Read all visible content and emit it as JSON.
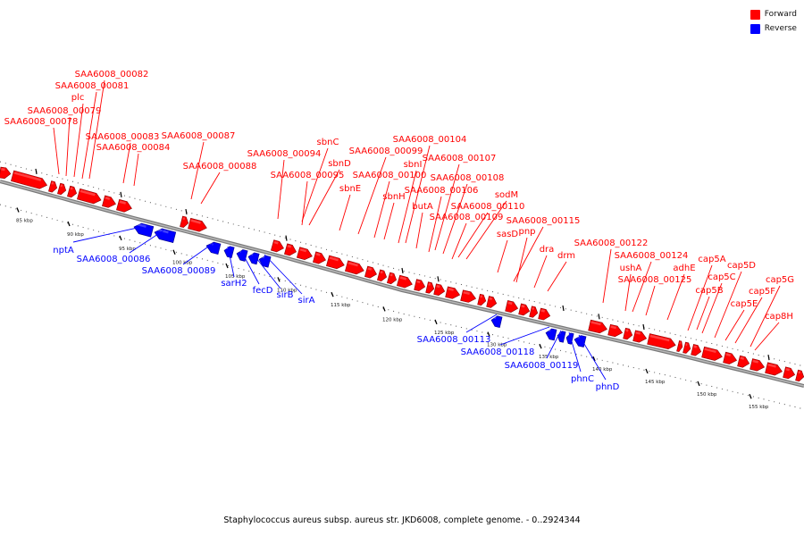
{
  "legend": {
    "forward_label": "Forward",
    "reverse_label": "Reverse",
    "forward_color": "#ff0000",
    "reverse_color": "#0000ff"
  },
  "footer": {
    "caption": "Staphylococcus aureus subsp. aureus str. JKD6008, complete genome. - 0..2924344"
  },
  "scale_ticks": [
    "85 kbp",
    "90 kbp",
    "95 kbp",
    "100 kbp",
    "105 kbp",
    "110 kbp",
    "115 kbp",
    "120 kbp",
    "125 kbp",
    "130 kbp",
    "135 kbp",
    "140 kbp",
    "145 kbp",
    "150 kbp",
    "155 kbp"
  ],
  "forward_genes": [
    "SAA6008_00082",
    "SAA6008_00081",
    "plc",
    "SAA6008_00079",
    "SAA6008_00078",
    "SAA6008_00083",
    "SAA6008_00084",
    "SAA6008_00087",
    "SAA6008_00088",
    "SAA6008_00094",
    "sbnC",
    "sbnD",
    "SAA6008_00095",
    "sbnE",
    "SAA6008_00099",
    "SAA6008_00104",
    "sbnI",
    "SAA6008_00107",
    "SAA6008_00100",
    "sbnH",
    "SAA6008_00108",
    "SAA6008_00106",
    "butA",
    "sodM",
    "SAA6008_00110",
    "SAA6008_00109",
    "SAA6008_00115",
    "sasD",
    "pnp",
    "dra",
    "drm",
    "SAA6008_00122",
    "SAA6008_00124",
    "ushA",
    "adhE",
    "SAA6008_00125",
    "cap5A",
    "cap5D",
    "cap5C",
    "cap5B",
    "cap5G",
    "cap5F",
    "cap5E",
    "cap8H"
  ],
  "reverse_genes": [
    "nptA",
    "SAA6008_00086",
    "SAA6008_00089",
    "sarH2",
    "fecD",
    "sirB",
    "sirA",
    "SAA6008_00113",
    "SAA6008_00118",
    "SAA6008_00119",
    "phnC",
    "phnD"
  ]
}
